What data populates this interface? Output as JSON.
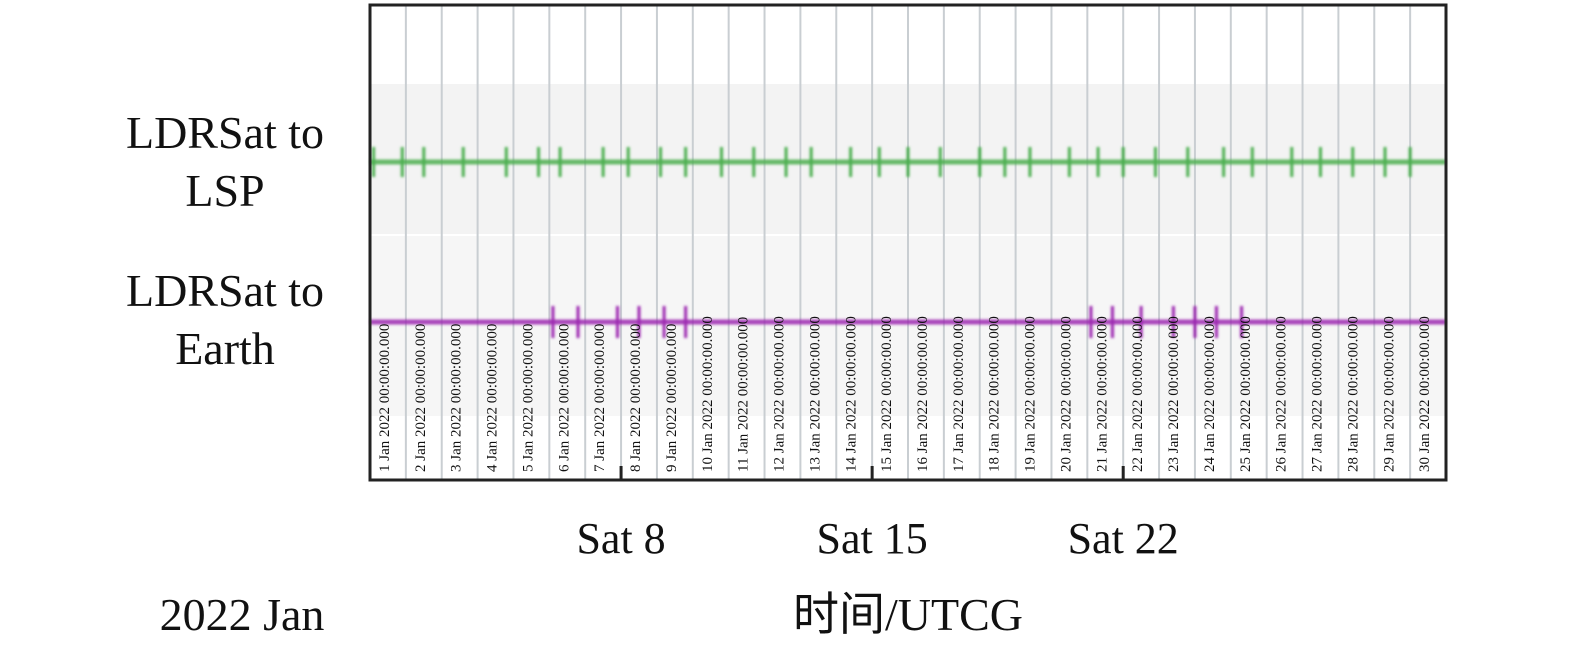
{
  "chart_data": {
    "type": "timeline",
    "rows": [
      {
        "label": [
          "LDRSat to",
          "LSP"
        ],
        "color": "#4caf50",
        "event_days": [
          1.1,
          1.9,
          2.5,
          3.6,
          4.8,
          5.7,
          6.3,
          7.5,
          8.2,
          9.1,
          9.8,
          10.8,
          11.7,
          12.6,
          13.3,
          14.4,
          15.2,
          16.0,
          16.9,
          18.0,
          18.7,
          19.4,
          20.5,
          21.3,
          22.0,
          22.9,
          23.8,
          24.8,
          25.6,
          26.7,
          27.5,
          28.4,
          29.3,
          30.0
        ]
      },
      {
        "label": [
          "LDRSat to",
          "Earth"
        ],
        "color": "#9c27b0",
        "event_days": [
          6.1,
          6.8,
          7.9,
          8.5,
          9.2,
          9.8,
          21.1,
          21.7,
          22.5,
          23.4,
          24.0,
          24.6,
          25.3
        ]
      }
    ],
    "date_labels": [
      "1 Jan 2022 00:00:00.000",
      "2 Jan 2022 00:00:00.000",
      "3 Jan 2022 00:00:00.000",
      "4 Jan 2022 00:00:00.000",
      "5 Jan 2022 00:00:00.000",
      "6 Jan 2022 00:00:00.000",
      "7 Jan 2022 00:00:00.000",
      "8 Jan 2022 00:00:00.000",
      "9 Jan 2022 00:00:00.000",
      "10 Jan 2022 00:00:00.000",
      "11 Jan 2022 00:00:00.000",
      "12 Jan 2022 00:00:00.000",
      "13 Jan 2022 00:00:00.000",
      "14 Jan 2022 00:00:00.000",
      "15 Jan 2022 00:00:00.000",
      "16 Jan 2022 00:00:00.000",
      "17 Jan 2022 00:00:00.000",
      "18 Jan 2022 00:00:00.000",
      "19 Jan 2022 00:00:00.000",
      "20 Jan 2022 00:00:00.000",
      "21 Jan 2022 00:00:00.000",
      "22 Jan 2022 00:00:00.000",
      "23 Jan 2022 00:00:00.000",
      "24 Jan 2022 00:00:00.000",
      "25 Jan 2022 00:00:00.000",
      "26 Jan 2022 00:00:00.000",
      "27 Jan 2022 00:00:00.000",
      "28 Jan 2022 00:00:00.000",
      "29 Jan 2022 00:00:00.000",
      "30 Jan 2022 00:00:00.000"
    ],
    "week_ticks": [
      {
        "day": 8,
        "label": "Sat 8"
      },
      {
        "day": 15,
        "label": "Sat 15"
      },
      {
        "day": 22,
        "label": "Sat 22"
      }
    ],
    "xlim_days": [
      1,
      31
    ],
    "period_label": "2022 Jan",
    "xlabel": "时间/UTCG"
  }
}
